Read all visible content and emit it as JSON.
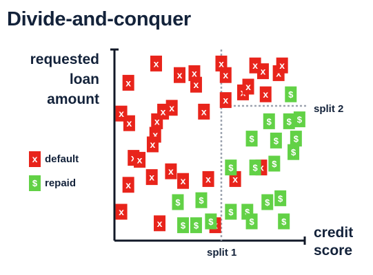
{
  "title": "Divide-and-conquer",
  "y_axis_label": [
    "requested",
    "loan",
    "amount"
  ],
  "x_axis_label": [
    "credit",
    "score"
  ],
  "legend": {
    "default": {
      "label": "default",
      "symbol": "x",
      "color": "#e8241b"
    },
    "repaid": {
      "label": "repaid",
      "symbol": "$",
      "color": "#62d146"
    }
  },
  "splits": {
    "split1": "split 1",
    "split2": "split 2"
  },
  "chart_data": {
    "type": "scatter",
    "points": [
      {
        "x": 0.43,
        "y": 0.33,
        "class": "default"
      },
      {
        "x": 0.65,
        "y": 0.36,
        "class": "default"
      },
      {
        "x": 0.79,
        "y": 0.31,
        "class": "default"
      },
      {
        "x": 1.08,
        "y": 0.32,
        "class": "default"
      },
      {
        "x": 1.39,
        "y": 0.32,
        "class": "default"
      },
      {
        "x": 1.69,
        "y": 0.38,
        "class": "default"
      },
      {
        "x": 0.52,
        "y": 0.09,
        "class": "default"
      },
      {
        "x": 1.16,
        "y": 0.08,
        "class": "default"
      },
      {
        "x": 0.08,
        "y": 0.15,
        "class": "default"
      },
      {
        "x": 0.16,
        "y": 0.29,
        "class": "default"
      },
      {
        "x": 0.22,
        "y": 0.43,
        "class": "default"
      },
      {
        "x": 0.29,
        "y": 0.42,
        "class": "default"
      },
      {
        "x": 0.17,
        "y": 0.61,
        "class": "default"
      },
      {
        "x": 0.49,
        "y": 0.62,
        "class": "default"
      },
      {
        "x": 0.56,
        "y": 0.67,
        "class": "default"
      },
      {
        "x": 0.66,
        "y": 0.69,
        "class": "default"
      },
      {
        "x": 1.03,
        "y": 0.67,
        "class": "default"
      },
      {
        "x": 0.08,
        "y": 0.66,
        "class": "default"
      },
      {
        "x": 1.28,
        "y": 0.73,
        "class": "default"
      },
      {
        "x": 1.48,
        "y": 0.77,
        "class": "default"
      },
      {
        "x": 1.54,
        "y": 0.8,
        "class": "default"
      },
      {
        "x": 1.74,
        "y": 0.76,
        "class": "default"
      },
      {
        "x": 1.71,
        "y": 0.88,
        "class": "default"
      },
      {
        "x": 1.28,
        "y": 0.86,
        "class": "default"
      },
      {
        "x": 1.62,
        "y": 0.91,
        "class": "default"
      },
      {
        "x": 1.89,
        "y": 0.87,
        "class": "default"
      },
      {
        "x": 1.93,
        "y": 0.91,
        "class": "default"
      },
      {
        "x": 0.16,
        "y": 0.82,
        "class": "default"
      },
      {
        "x": 0.48,
        "y": 0.92,
        "class": "default"
      },
      {
        "x": 0.75,
        "y": 0.86,
        "class": "default"
      },
      {
        "x": 0.92,
        "y": 0.87,
        "class": "default"
      },
      {
        "x": 0.94,
        "y": 0.81,
        "class": "default"
      },
      {
        "x": 1.23,
        "y": 0.92,
        "class": "default"
      },
      {
        "x": 0.47,
        "y": 0.55,
        "class": "default"
      },
      {
        "x": 0.44,
        "y": 0.5,
        "class": "default"
      },
      {
        "x": 0.79,
        "y": 0.08,
        "class": "repaid"
      },
      {
        "x": 0.94,
        "y": 0.08,
        "class": "repaid"
      },
      {
        "x": 1.11,
        "y": 0.1,
        "class": "repaid"
      },
      {
        "x": 0.73,
        "y": 0.2,
        "class": "repaid"
      },
      {
        "x": 1.0,
        "y": 0.21,
        "class": "repaid"
      },
      {
        "x": 1.34,
        "y": 0.15,
        "class": "repaid"
      },
      {
        "x": 1.53,
        "y": 0.15,
        "class": "repaid"
      },
      {
        "x": 1.76,
        "y": 0.2,
        "class": "repaid"
      },
      {
        "x": 1.91,
        "y": 0.22,
        "class": "repaid"
      },
      {
        "x": 1.95,
        "y": 0.1,
        "class": "repaid"
      },
      {
        "x": 1.58,
        "y": 0.1,
        "class": "repaid"
      },
      {
        "x": 1.34,
        "y": 0.38,
        "class": "repaid"
      },
      {
        "x": 1.62,
        "y": 0.38,
        "class": "repaid"
      },
      {
        "x": 1.84,
        "y": 0.4,
        "class": "repaid"
      },
      {
        "x": 1.58,
        "y": 0.53,
        "class": "repaid"
      },
      {
        "x": 1.86,
        "y": 0.52,
        "class": "repaid"
      },
      {
        "x": 2.09,
        "y": 0.53,
        "class": "repaid"
      },
      {
        "x": 1.78,
        "y": 0.62,
        "class": "repaid"
      },
      {
        "x": 2.01,
        "y": 0.62,
        "class": "repaid"
      },
      {
        "x": 2.13,
        "y": 0.63,
        "class": "repaid"
      },
      {
        "x": 2.06,
        "y": 0.46,
        "class": "repaid"
      },
      {
        "x": 2.03,
        "y": 0.76,
        "class": "repaid"
      }
    ],
    "split1_x": 1.23,
    "split2_y": 0.7
  }
}
